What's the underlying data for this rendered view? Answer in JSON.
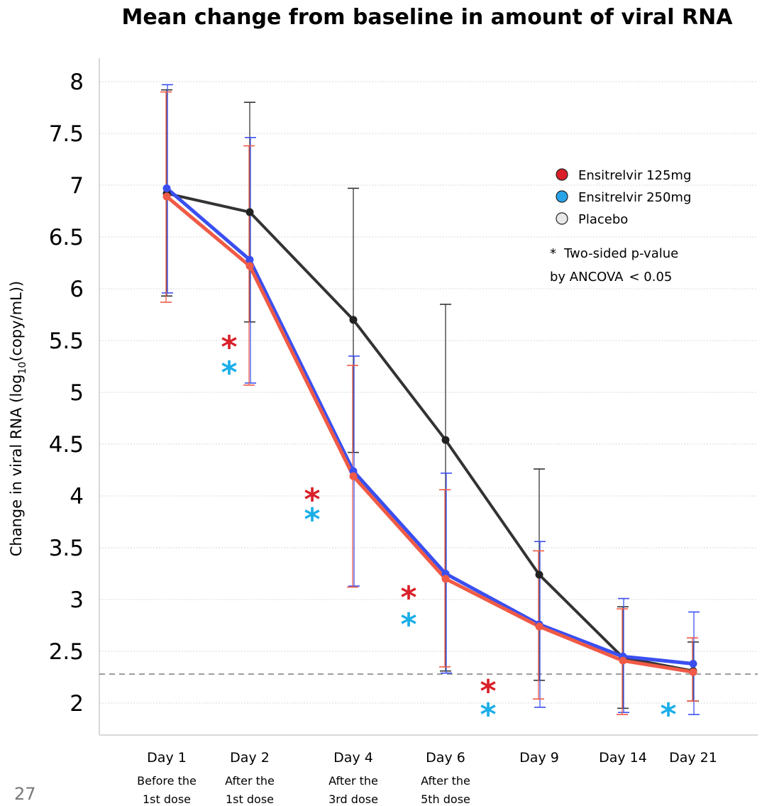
{
  "page_number": "27",
  "note": {
    "star": "*",
    "line1": "Two-sided p-value",
    "line2": "by ANCOVA",
    "line2_suffix": "< 0.05"
  },
  "chart_data": {
    "type": "line",
    "title": "Mean change from baseline in amount of viral RNA",
    "ylabel": {
      "prefix": "Change in viral RNA (log",
      "subscript": "10",
      "suffix": "(copy/mL))"
    },
    "xlabel": "",
    "ylim": [
      1.65,
      8.2
    ],
    "yticks": [
      "8",
      "7.5",
      "7",
      "6.5",
      "6",
      "5.5",
      "5",
      "4.5",
      "4",
      "3.5",
      "3",
      "2.5",
      "2"
    ],
    "ytick_values": [
      8,
      7.5,
      7,
      6.5,
      6,
      5.5,
      5,
      4.5,
      4,
      3.5,
      3,
      2.5,
      2
    ],
    "grid": true,
    "legend_position": "top-right",
    "reference_line": {
      "y": 2.28,
      "style": "dashed",
      "color": "#999999"
    },
    "categories": [
      {
        "label": "Day 1",
        "sub": [
          "Before the",
          "1st dose"
        ]
      },
      {
        "label": "Day 2",
        "sub": [
          "After the",
          "1st dose"
        ]
      },
      {
        "label": "Day 4",
        "sub": [
          "After the",
          "3rd dose"
        ]
      },
      {
        "label": "Day 6",
        "sub": [
          "After the",
          "5th dose"
        ]
      },
      {
        "label": "Day 9",
        "sub": []
      },
      {
        "label": "Day 14",
        "sub": []
      },
      {
        "label": "Day 21",
        "sub": []
      }
    ],
    "series": [
      {
        "name": "Placebo",
        "line_color": "#333333",
        "marker_color": "#e8e8e8",
        "values": [
          6.92,
          6.74,
          5.7,
          4.54,
          3.24,
          2.44,
          2.31
        ],
        "err_upper": [
          7.92,
          7.8,
          6.97,
          5.85,
          4.26,
          2.93,
          2.59
        ],
        "err_lower": [
          5.93,
          5.68,
          4.42,
          2.31,
          2.22,
          1.95,
          2.02
        ]
      },
      {
        "name": "Ensitrelvir 250mg",
        "line_color": "#3a4ff0",
        "marker_color": "#29a3e8",
        "values": [
          6.97,
          6.28,
          4.24,
          3.25,
          2.76,
          2.45,
          2.38
        ],
        "err_upper": [
          7.97,
          7.46,
          5.35,
          4.22,
          3.56,
          3.01,
          2.88
        ],
        "err_lower": [
          5.96,
          5.09,
          3.13,
          2.29,
          1.96,
          1.91,
          1.89
        ]
      },
      {
        "name": "Ensitrelvir 125mg",
        "line_color": "#f05a46",
        "marker_color": "#d9202a",
        "values": [
          6.89,
          6.22,
          4.19,
          3.2,
          2.74,
          2.41,
          2.3
        ],
        "err_upper": [
          7.9,
          7.38,
          5.26,
          4.06,
          3.47,
          2.91,
          2.63
        ],
        "err_lower": [
          5.87,
          5.07,
          3.12,
          2.35,
          2.04,
          1.89,
          2.02
        ]
      }
    ],
    "legend": [
      {
        "name": "Ensitrelvir 125mg",
        "color": "#d9202a"
      },
      {
        "name": "Ensitrelvir 250mg",
        "color": "#29a3e8"
      },
      {
        "name": "Placebo",
        "color": "#e8e8e8"
      }
    ],
    "significance_markers": [
      {
        "between": [
          1,
          2
        ],
        "stars": [
          {
            "text": "*",
            "color": "#d9202a"
          },
          {
            "text": "*",
            "color": "#1aaee8"
          }
        ]
      },
      {
        "between": [
          2,
          3
        ],
        "stars": [
          {
            "text": "*",
            "color": "#d9202a"
          },
          {
            "text": "*",
            "color": "#1aaee8"
          }
        ]
      },
      {
        "between": [
          3,
          4
        ],
        "stars": [
          {
            "text": "*",
            "color": "#d9202a"
          },
          {
            "text": "*",
            "color": "#1aaee8"
          }
        ]
      },
      {
        "between": [
          4,
          5
        ],
        "stars": [
          {
            "text": "*",
            "color": "#d9202a"
          },
          {
            "text": "*",
            "color": "#1aaee8"
          }
        ]
      },
      {
        "between": [
          5,
          6
        ],
        "stars": [
          {
            "text": "*",
            "color": "#1aaee8"
          }
        ]
      }
    ]
  }
}
